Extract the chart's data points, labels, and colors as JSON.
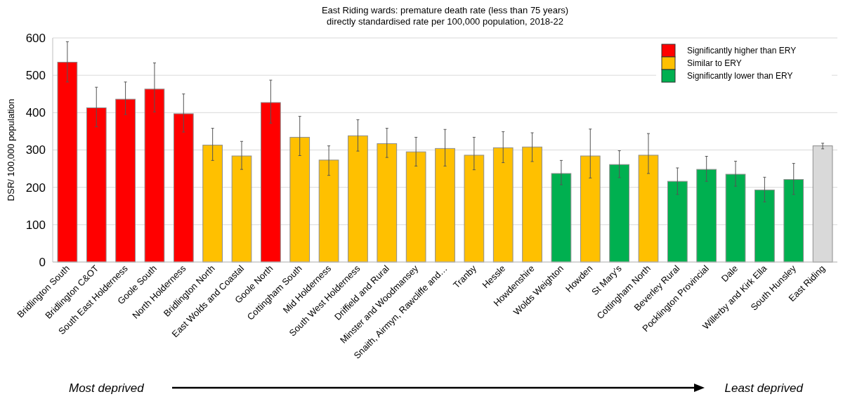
{
  "chart_data": {
    "type": "bar",
    "title": "East Riding wards: premature death rate (less than 75 years)",
    "subtitle": "directly standardised rate per 100,000 population, 2018-22",
    "ylabel": "DSR/ 100,000 population",
    "categories": [
      "Bridlington South",
      "Bridlington C&OT",
      "South East Holderness",
      "Goole South",
      "North Holderness",
      "Bridlington North",
      "East Wolds and Coastal",
      "Goole North",
      "Cottingham South",
      "Mid Holderness",
      "South West Holderness",
      "Driffield and Rural",
      "Minster and Woodmansey",
      "Snaith, Airmyn, Rawcliffe and…",
      "Tranby",
      "Hessle",
      "Howdenshire",
      "Wolds Weighton",
      "Howden",
      "St Mary's",
      "Cottingham North",
      "Beverley Rural",
      "Pocklington Provincial",
      "Dale",
      "Willerby and Kirk Ella",
      "South Hunsley",
      "East Riding"
    ],
    "stacked": true,
    "series": [
      {
        "name": "Significantly higher than ERY",
        "color": "#ff0000",
        "values": [
          535,
          413,
          436,
          463,
          397,
          null,
          null,
          427,
          null,
          null,
          null,
          null,
          null,
          null,
          null,
          null,
          null,
          null,
          null,
          null,
          null,
          null,
          null,
          null,
          null,
          null,
          null
        ],
        "errors": [
          [
            482,
            590
          ],
          [
            362,
            468
          ],
          [
            395,
            482
          ],
          [
            402,
            533
          ],
          [
            348,
            450
          ],
          null,
          null,
          [
            372,
            487
          ],
          null,
          null,
          null,
          null,
          null,
          null,
          null,
          null,
          null,
          null,
          null,
          null,
          null,
          null,
          null,
          null,
          null,
          null,
          null
        ]
      },
      {
        "name": "Similar to ERY",
        "color": "#ffc000",
        "values": [
          null,
          null,
          null,
          null,
          null,
          313,
          284,
          null,
          334,
          273,
          338,
          317,
          295,
          304,
          286,
          306,
          308,
          null,
          284,
          null,
          286,
          null,
          null,
          null,
          null,
          null,
          null
        ],
        "errors": [
          null,
          null,
          null,
          null,
          null,
          [
            272,
            358
          ],
          [
            248,
            323
          ],
          null,
          [
            285,
            390
          ],
          [
            232,
            311
          ],
          [
            297,
            381
          ],
          [
            280,
            358
          ],
          [
            257,
            334
          ],
          [
            257,
            355
          ],
          [
            247,
            334
          ],
          [
            266,
            349
          ],
          [
            269,
            346
          ],
          null,
          [
            225,
            356
          ],
          null,
          [
            237,
            344
          ],
          null,
          null,
          null,
          null,
          null,
          null
        ]
      },
      {
        "name": "Significantly lower than ERY",
        "color": "#00b050",
        "values": [
          null,
          null,
          null,
          null,
          null,
          null,
          null,
          null,
          null,
          null,
          null,
          null,
          null,
          null,
          null,
          null,
          null,
          237,
          null,
          261,
          null,
          216,
          248,
          235,
          193,
          221,
          null
        ],
        "errors": [
          null,
          null,
          null,
          null,
          null,
          null,
          null,
          null,
          null,
          null,
          null,
          null,
          null,
          null,
          null,
          null,
          null,
          [
            207,
            272
          ],
          null,
          [
            226,
            298
          ],
          null,
          [
            181,
            252
          ],
          [
            216,
            283
          ],
          [
            203,
            270
          ],
          [
            161,
            227
          ],
          [
            181,
            264
          ],
          null
        ]
      },
      {
        "color": "#d9d9d9",
        "values": [
          null,
          null,
          null,
          null,
          null,
          null,
          null,
          null,
          null,
          null,
          null,
          null,
          null,
          null,
          null,
          null,
          null,
          null,
          null,
          null,
          null,
          null,
          null,
          null,
          null,
          null,
          311
        ],
        "errors": [
          null,
          null,
          null,
          null,
          null,
          null,
          null,
          null,
          null,
          null,
          null,
          null,
          null,
          null,
          null,
          null,
          null,
          null,
          null,
          null,
          null,
          null,
          null,
          null,
          null,
          null,
          [
            303,
            318
          ]
        ]
      }
    ],
    "ylim": [
      0,
      600
    ],
    "yticks": [
      0,
      100,
      200,
      300,
      400,
      500,
      600
    ],
    "grid": "y",
    "legend": "top right",
    "annotations": [
      "Most deprived",
      "Least deprived"
    ]
  }
}
